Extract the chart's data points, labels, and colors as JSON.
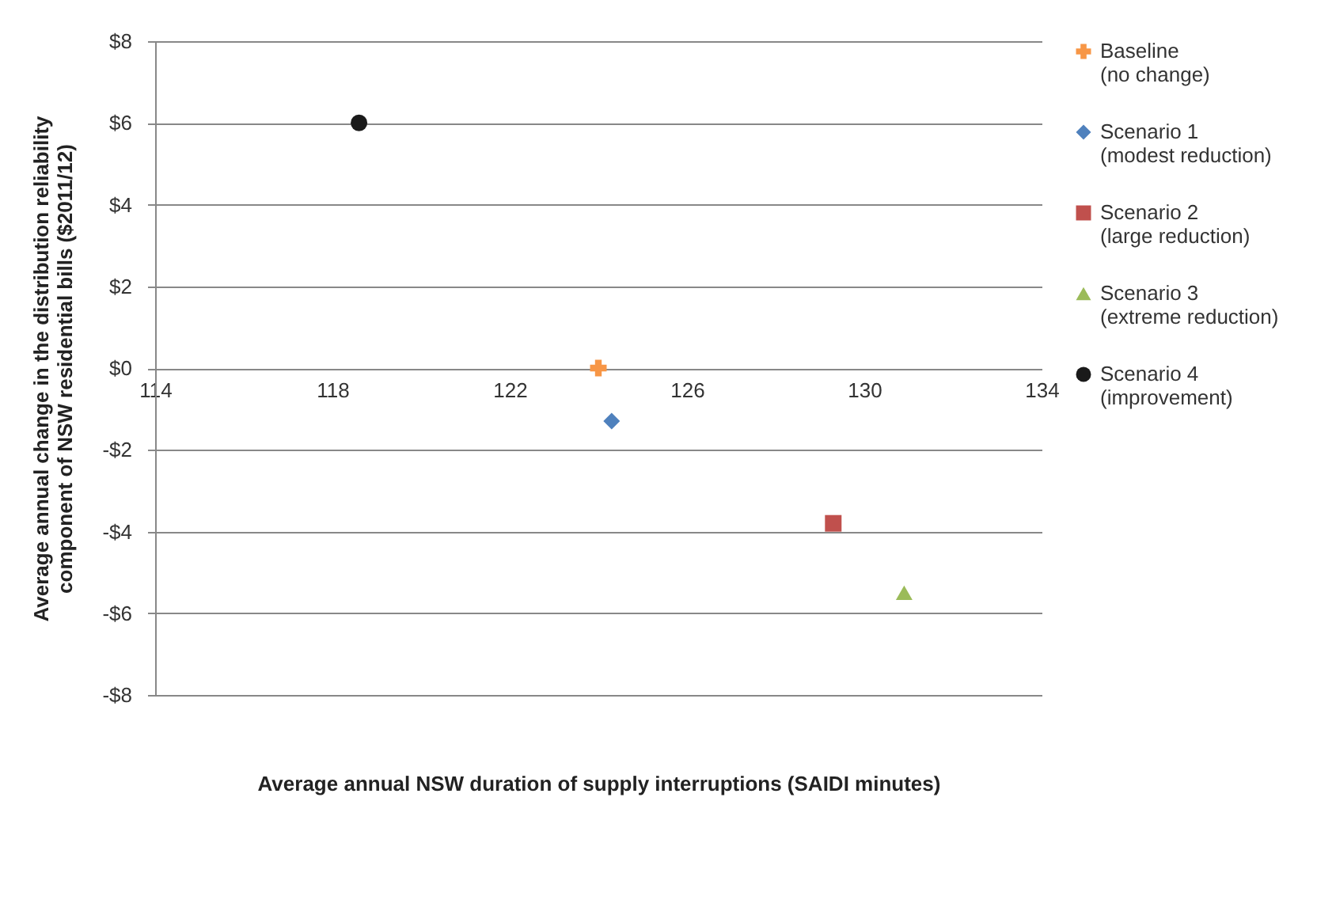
{
  "chart_data": {
    "type": "scatter",
    "xlabel": "Average annual NSW duration of supply interruptions (SAIDI minutes)",
    "ylabel": "Average annual change in the distribution reliability component of NSW residential bills ($2011/12)",
    "xlim": [
      114,
      134
    ],
    "xticks": [
      114,
      118,
      122,
      126,
      130,
      134
    ],
    "ylim": [
      -8,
      8
    ],
    "yticks": [
      {
        "value": -8,
        "label": "-$8"
      },
      {
        "value": -6,
        "label": "-$6"
      },
      {
        "value": -4,
        "label": "-$4"
      },
      {
        "value": -2,
        "label": "-$2"
      },
      {
        "value": 0,
        "label": "$0"
      },
      {
        "value": 2,
        "label": "$2"
      },
      {
        "value": 4,
        "label": "$4"
      },
      {
        "value": 6,
        "label": "$6"
      },
      {
        "value": 8,
        "label": "$8"
      }
    ],
    "grid": "y",
    "legend": "right",
    "series": [
      {
        "name": "Baseline (no change)",
        "color": "#f79646",
        "marker": "cross",
        "x": [
          124.0
        ],
        "values": [
          0
        ]
      },
      {
        "name": "Scenario 1 (modest reduction)",
        "color": "#4f81bd",
        "marker": "diamond",
        "x": [
          124.3
        ],
        "values": [
          -1.3
        ]
      },
      {
        "name": "Scenario 2 (large reduction)",
        "color": "#c0504d",
        "marker": "square",
        "x": [
          129.3
        ],
        "values": [
          -3.8
        ]
      },
      {
        "name": "Scenario 3 (extreme reduction)",
        "color": "#9bbb59",
        "marker": "triangle",
        "x": [
          130.9
        ],
        "values": [
          -5.5
        ]
      },
      {
        "name": "Scenario 4 (improvement)",
        "color": "#1a1a1a",
        "marker": "circle",
        "x": [
          118.6
        ],
        "values": [
          6.0
        ]
      }
    ]
  }
}
